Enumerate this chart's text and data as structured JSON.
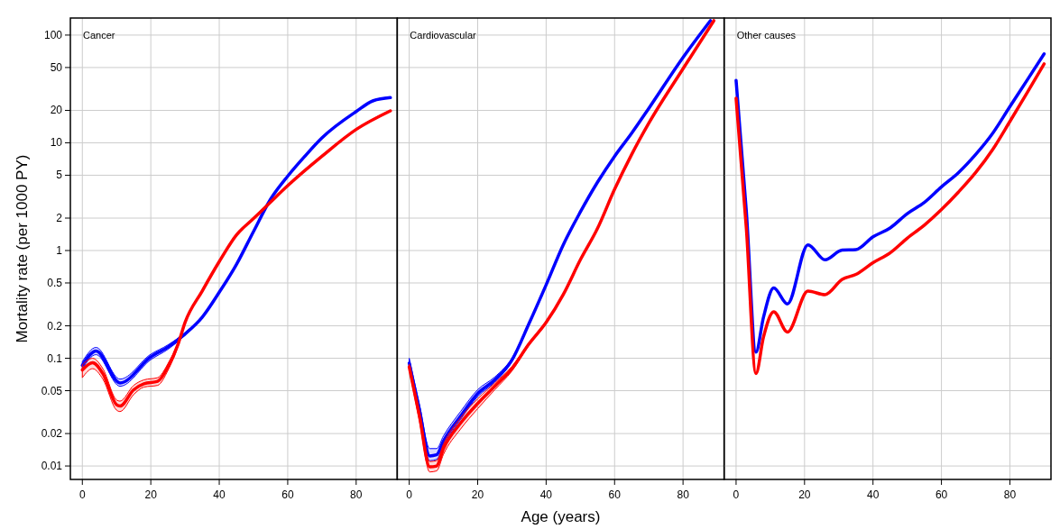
{
  "chart_data": [
    {
      "type": "line",
      "title": "Cancer",
      "ylabel": "Mortality rate (per 1000 PY)",
      "xlim": [
        -3.5,
        92
      ],
      "xticks": [
        0,
        20,
        40,
        60,
        80
      ],
      "ylim": [
        0.0075,
        144
      ],
      "yticks": [
        0.01,
        0.02,
        0.05,
        0.1,
        0.2,
        0.5,
        1,
        2,
        5,
        10,
        20,
        50,
        100
      ],
      "log": "y",
      "grid": true,
      "series": [
        {
          "color": "#0000ff",
          "x": [
            0,
            4,
            11,
            20,
            25,
            30,
            35,
            40,
            45,
            50,
            55,
            60,
            65,
            70,
            80,
            85,
            90
          ],
          "values": [
            0.086,
            0.117,
            0.059,
            0.103,
            0.127,
            0.168,
            0.24,
            0.41,
            0.74,
            1.5,
            3.0,
            4.9,
            7.5,
            11.1,
            19.5,
            24.6,
            26.3
          ],
          "lower": [
            0.08,
            0.108,
            0.055,
            0.097,
            0.121,
            0.163,
            0.235,
            0.4,
            0.73,
            1.48,
            2.96,
            4.85,
            7.4,
            11,
            19.3,
            24.3,
            26
          ],
          "upper": [
            0.093,
            0.126,
            0.064,
            0.109,
            0.133,
            0.173,
            0.245,
            0.42,
            0.75,
            1.52,
            3.04,
            4.95,
            7.6,
            11.2,
            19.7,
            24.9,
            26.6
          ]
        },
        {
          "color": "#ff0000",
          "x": [
            0,
            3,
            6,
            10,
            11,
            15,
            18,
            22,
            25,
            28,
            30,
            35,
            40,
            45,
            50,
            55,
            60,
            70,
            80,
            90
          ],
          "values": [
            0.078,
            0.091,
            0.072,
            0.037,
            0.036,
            0.051,
            0.058,
            0.061,
            0.083,
            0.136,
            0.215,
            0.42,
            0.79,
            1.39,
            1.98,
            2.82,
            4.0,
            7.5,
            13.3,
            19.8
          ],
          "lower": [
            0.066,
            0.08,
            0.064,
            0.033,
            0.032,
            0.046,
            0.054,
            0.056,
            0.077,
            0.13,
            0.21,
            0.41,
            0.78,
            1.37,
            1.96,
            2.79,
            3.96,
            7.4,
            13.1,
            19.5
          ],
          "upper": [
            0.087,
            0.1,
            0.08,
            0.041,
            0.04,
            0.056,
            0.063,
            0.066,
            0.089,
            0.142,
            0.22,
            0.43,
            0.8,
            1.41,
            2.0,
            2.85,
            4.04,
            7.6,
            13.5,
            20.1
          ]
        }
      ]
    },
    {
      "type": "line",
      "title": "Cardiovascular",
      "xlabel": "Age (years)",
      "xlim": [
        -3.5,
        92
      ],
      "xticks": [
        0,
        20,
        40,
        60,
        80
      ],
      "ylim": [
        0.0075,
        144
      ],
      "yticks": [
        0.01,
        0.02,
        0.05,
        0.1,
        0.2,
        0.5,
        1,
        2,
        5,
        10,
        20,
        50,
        100
      ],
      "log": "y",
      "grid": true,
      "tick_labels": "x",
      "series": [
        {
          "color": "#0000ff",
          "x": [
            0,
            3,
            6,
            8,
            10,
            15,
            20,
            25,
            30,
            35,
            40,
            45,
            50,
            55,
            60,
            65,
            70,
            80,
            88
          ],
          "values": [
            0.09,
            0.033,
            0.0124,
            0.0127,
            0.017,
            0.029,
            0.047,
            0.063,
            0.096,
            0.21,
            0.48,
            1.13,
            2.28,
            4.3,
            7.5,
            12.3,
            20.9,
            62,
            136
          ],
          "lower": [
            0.085,
            0.03,
            0.0112,
            0.0115,
            0.0155,
            0.027,
            0.044,
            0.06,
            0.093,
            0.205,
            0.47,
            1.11,
            2.25,
            4.25,
            7.4,
            12.2,
            20.7,
            61,
            134
          ],
          "upper": [
            0.1,
            0.037,
            0.0145,
            0.0145,
            0.019,
            0.032,
            0.051,
            0.067,
            0.1,
            0.215,
            0.49,
            1.15,
            2.31,
            4.35,
            7.6,
            12.4,
            21.1,
            63,
            138
          ]
        },
        {
          "color": "#ff0000",
          "x": [
            0,
            3,
            6,
            8,
            10,
            15,
            20,
            25,
            30,
            35,
            40,
            45,
            50,
            55,
            60,
            65,
            70,
            80,
            89
          ],
          "values": [
            0.083,
            0.029,
            0.0098,
            0.01,
            0.0145,
            0.025,
            0.038,
            0.055,
            0.08,
            0.136,
            0.215,
            0.39,
            0.82,
            1.6,
            3.7,
            7.8,
            15.2,
            48.7,
            136
          ],
          "lower": [
            0.078,
            0.026,
            0.0088,
            0.009,
            0.0128,
            0.022,
            0.034,
            0.051,
            0.076,
            0.132,
            0.21,
            0.385,
            0.81,
            1.58,
            3.66,
            7.7,
            15,
            48.2,
            134
          ],
          "upper": [
            0.088,
            0.032,
            0.011,
            0.0112,
            0.016,
            0.028,
            0.042,
            0.059,
            0.084,
            0.14,
            0.22,
            0.395,
            0.83,
            1.62,
            3.74,
            7.9,
            15.4,
            49.2,
            138
          ]
        }
      ]
    },
    {
      "type": "line",
      "title": "Other causes",
      "xlim": [
        -3.5,
        92
      ],
      "xticks": [
        0,
        20,
        40,
        60,
        80
      ],
      "ylim": [
        0.0075,
        144
      ],
      "yticks": [
        0.01,
        0.02,
        0.05,
        0.1,
        0.2,
        0.5,
        1,
        2,
        5,
        10,
        20,
        50,
        100
      ],
      "log": "y",
      "grid": true,
      "tick_labels": "x",
      "series": [
        {
          "color": "#0000ff",
          "x": [
            0,
            3,
            5.8,
            8,
            11,
            15,
            21,
            26,
            31,
            35,
            40,
            45,
            50,
            55,
            60,
            65,
            70,
            75,
            80,
            85,
            90
          ],
          "values": [
            38,
            2.3,
            0.114,
            0.24,
            0.45,
            0.32,
            1.13,
            0.82,
            1.01,
            1.02,
            1.34,
            1.62,
            2.2,
            2.8,
            3.9,
            5.3,
            7.8,
            12.3,
            21.7,
            38,
            67
          ]
        },
        {
          "color": "#ff0000",
          "x": [
            0,
            3,
            5.8,
            8,
            11,
            15,
            21,
            26,
            31,
            35,
            40,
            45,
            50,
            55,
            60,
            65,
            70,
            75,
            80,
            85,
            90
          ],
          "values": [
            25.9,
            1.6,
            0.072,
            0.157,
            0.27,
            0.175,
            0.42,
            0.39,
            0.54,
            0.6,
            0.77,
            0.95,
            1.3,
            1.72,
            2.4,
            3.5,
            5.3,
            8.7,
            15.8,
            29,
            54
          ]
        }
      ]
    }
  ]
}
